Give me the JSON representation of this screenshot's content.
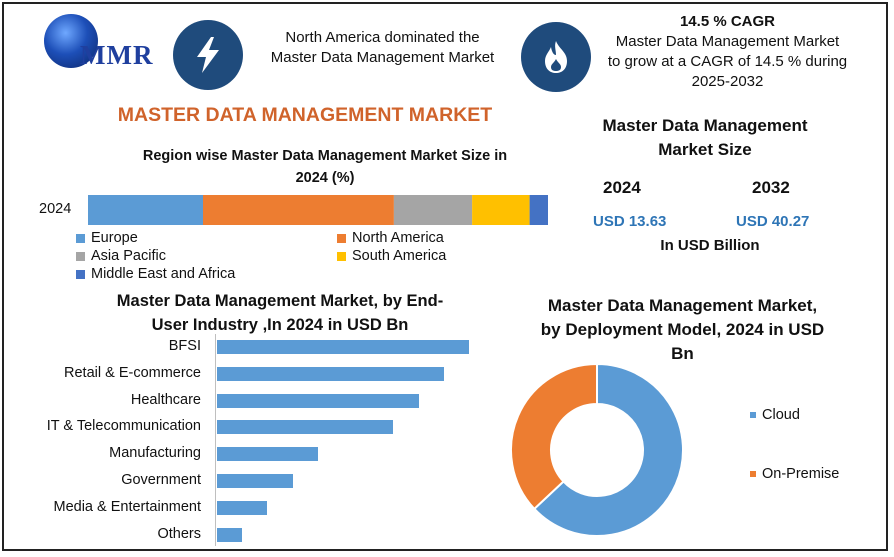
{
  "header": {
    "logo_text": "MMR",
    "dominance_text_line1": "North America dominated the",
    "dominance_text_line2": "Master Data Management Market",
    "cagr_title": "14.5 % CAGR",
    "cagr_text_line1": "Master Data Management Market",
    "cagr_text_line2": "to grow at a CAGR of 14.5 % during",
    "cagr_text_line3": "2025-2032",
    "icons": [
      "globe-logo-icon",
      "lightning-icon",
      "flame-icon"
    ]
  },
  "main_title": "MASTER DATA MANAGEMENT MARKET",
  "market_size": {
    "title_line1": "Master Data Management",
    "title_line2": "Market Size",
    "year_a": "2024",
    "year_b": "2032",
    "value_a": "USD 13.63",
    "value_b": "USD 40.27",
    "unit": "In USD Billion",
    "value_color": "#2e75b6"
  },
  "chart_data": [
    {
      "type": "bar",
      "orientation": "horizontal-stacked",
      "title_line1": "Region wise Master Data Management Market Size in",
      "title_line2": "2024 (%)",
      "categories": [
        "2024"
      ],
      "series": [
        {
          "name": "Europe",
          "values": [
            25
          ],
          "color": "#5b9bd5"
        },
        {
          "name": "North America",
          "values": [
            41.5
          ],
          "color": "#ed7d31"
        },
        {
          "name": "Asia Pacific",
          "values": [
            17
          ],
          "color": "#a5a5a5"
        },
        {
          "name": "South America",
          "values": [
            12.5
          ],
          "color": "#ffc000"
        },
        {
          "name": "Middle East and Africa",
          "values": [
            4
          ],
          "color": "#4472c4"
        }
      ],
      "xlim": [
        0,
        100
      ],
      "legend": "bottom"
    },
    {
      "type": "bar",
      "orientation": "horizontal",
      "title_line1": "Master Data Management Market, by  End-",
      "title_line2": "User Industry ,In 2024 in USD Bn",
      "categories": [
        "BFSI",
        "Retail & E-commerce",
        "Healthcare",
        "IT & Telecommunication",
        "Manufacturing",
        "Government",
        "Media & Entertainment",
        "Others"
      ],
      "values": [
        100,
        90,
        80,
        70,
        40,
        30,
        20,
        10
      ],
      "color": "#5b9bd5",
      "xlim": [
        0,
        100
      ]
    },
    {
      "type": "pie",
      "variant": "donut",
      "title_line1": "Master Data Management Market,",
      "title_line2": "by Deployment Model, 2024 in USD",
      "title_line3": "Bn",
      "labels": [
        "Cloud",
        "On-Premise"
      ],
      "values": [
        63,
        37
      ],
      "colors": [
        "#5b9bd5",
        "#ed7d31"
      ],
      "legend": "right"
    }
  ]
}
